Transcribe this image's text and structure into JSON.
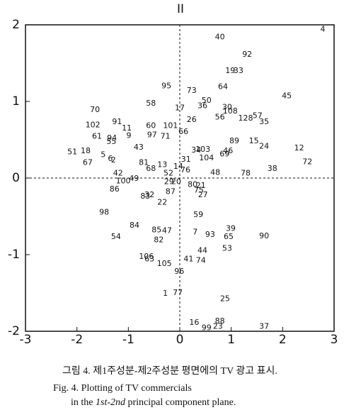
{
  "chart_data": {
    "type": "scatter",
    "title": "II",
    "xlim": [
      -3,
      3
    ],
    "ylim": [
      -2,
      2
    ],
    "xticks": [
      -3,
      -2,
      -1,
      0,
      1,
      2,
      3
    ],
    "yticks": [
      -2,
      -1,
      0,
      1,
      2
    ],
    "zero_lines": true,
    "color": "#111111",
    "points": [
      {
        "label": "4",
        "x": 2.78,
        "y": 1.94
      },
      {
        "label": "40",
        "x": 0.78,
        "y": 1.84
      },
      {
        "label": "92",
        "x": 1.31,
        "y": 1.61
      },
      {
        "label": "19",
        "x": 0.98,
        "y": 1.4
      },
      {
        "label": "33",
        "x": 1.14,
        "y": 1.4
      },
      {
        "label": "95",
        "x": -0.26,
        "y": 1.2
      },
      {
        "label": "73",
        "x": 0.23,
        "y": 1.14
      },
      {
        "label": "64",
        "x": 0.84,
        "y": 1.19
      },
      {
        "label": "45",
        "x": 2.08,
        "y": 1.07
      },
      {
        "label": "58",
        "x": -0.56,
        "y": 0.97
      },
      {
        "label": "50",
        "x": 0.52,
        "y": 1.01
      },
      {
        "label": "36",
        "x": 0.44,
        "y": 0.94
      },
      {
        "label": "17",
        "x": 0.0,
        "y": 0.91
      },
      {
        "label": "30",
        "x": 0.92,
        "y": 0.92
      },
      {
        "label": "108",
        "x": 0.98,
        "y": 0.87
      },
      {
        "label": "70",
        "x": -1.65,
        "y": 0.89
      },
      {
        "label": "128",
        "x": 1.28,
        "y": 0.78
      },
      {
        "label": "57",
        "x": 1.51,
        "y": 0.81
      },
      {
        "label": "56",
        "x": 0.78,
        "y": 0.79
      },
      {
        "label": "26",
        "x": 0.23,
        "y": 0.76
      },
      {
        "label": "35",
        "x": 1.64,
        "y": 0.73
      },
      {
        "label": "102",
        "x": -1.69,
        "y": 0.69
      },
      {
        "label": "91",
        "x": -1.22,
        "y": 0.73
      },
      {
        "label": "11",
        "x": -1.03,
        "y": 0.65
      },
      {
        "label": "60",
        "x": -0.56,
        "y": 0.68
      },
      {
        "label": "101",
        "x": -0.18,
        "y": 0.68
      },
      {
        "label": "66",
        "x": 0.07,
        "y": 0.6
      },
      {
        "label": "61",
        "x": -1.61,
        "y": 0.54
      },
      {
        "label": "94",
        "x": -1.32,
        "y": 0.52
      },
      {
        "label": "9",
        "x": -0.99,
        "y": 0.55
      },
      {
        "label": "97",
        "x": -0.54,
        "y": 0.56
      },
      {
        "label": "71",
        "x": -0.28,
        "y": 0.54
      },
      {
        "label": "89",
        "x": 1.06,
        "y": 0.48
      },
      {
        "label": "15",
        "x": 1.44,
        "y": 0.48
      },
      {
        "label": "55",
        "x": -1.33,
        "y": 0.47
      },
      {
        "label": "24",
        "x": 1.64,
        "y": 0.41
      },
      {
        "label": "43",
        "x": -0.8,
        "y": 0.4
      },
      {
        "label": "103",
        "x": 0.45,
        "y": 0.37
      },
      {
        "label": "34",
        "x": 0.32,
        "y": 0.36
      },
      {
        "label": "46",
        "x": 0.94,
        "y": 0.35
      },
      {
        "label": "69",
        "x": 0.87,
        "y": 0.31
      },
      {
        "label": "12",
        "x": 2.32,
        "y": 0.39
      },
      {
        "label": "51",
        "x": -2.09,
        "y": 0.34
      },
      {
        "label": "18",
        "x": -1.83,
        "y": 0.35
      },
      {
        "label": "5",
        "x": -1.49,
        "y": 0.3
      },
      {
        "label": "6",
        "x": -1.35,
        "y": 0.25
      },
      {
        "label": "2",
        "x": -1.29,
        "y": 0.23
      },
      {
        "label": "104",
        "x": 0.52,
        "y": 0.26
      },
      {
        "label": "31",
        "x": 0.12,
        "y": 0.24
      },
      {
        "label": "67",
        "x": -1.79,
        "y": 0.2
      },
      {
        "label": "81",
        "x": -0.7,
        "y": 0.2
      },
      {
        "label": "72",
        "x": 2.48,
        "y": 0.21
      },
      {
        "label": "13",
        "x": -0.34,
        "y": 0.17
      },
      {
        "label": "14",
        "x": -0.03,
        "y": 0.15
      },
      {
        "label": "76",
        "x": 0.11,
        "y": 0.1
      },
      {
        "label": "68",
        "x": -0.56,
        "y": 0.12
      },
      {
        "label": "48",
        "x": 0.69,
        "y": 0.07
      },
      {
        "label": "78",
        "x": 1.28,
        "y": 0.06
      },
      {
        "label": "38",
        "x": 1.8,
        "y": 0.12
      },
      {
        "label": "42",
        "x": -1.2,
        "y": 0.06
      },
      {
        "label": "52",
        "x": -0.22,
        "y": 0.06
      },
      {
        "label": "49",
        "x": -0.89,
        "y": -0.01
      },
      {
        "label": "100",
        "x": -1.1,
        "y": -0.04
      },
      {
        "label": "29",
        "x": -0.21,
        "y": -0.05
      },
      {
        "label": "20",
        "x": -0.07,
        "y": -0.05
      },
      {
        "label": "80",
        "x": 0.25,
        "y": -0.09
      },
      {
        "label": "21",
        "x": 0.41,
        "y": -0.1
      },
      {
        "label": "86",
        "x": -1.27,
        "y": -0.15
      },
      {
        "label": "75",
        "x": 0.37,
        "y": -0.16
      },
      {
        "label": "87",
        "x": -0.18,
        "y": -0.18
      },
      {
        "label": "27",
        "x": 0.45,
        "y": -0.22
      },
      {
        "label": "83",
        "x": -0.67,
        "y": -0.24
      },
      {
        "label": "32",
        "x": -0.59,
        "y": -0.22
      },
      {
        "label": "22",
        "x": -0.34,
        "y": -0.32
      },
      {
        "label": "98",
        "x": -1.47,
        "y": -0.45
      },
      {
        "label": "59",
        "x": 0.36,
        "y": -0.48
      },
      {
        "label": "84",
        "x": -0.88,
        "y": -0.62
      },
      {
        "label": "39",
        "x": 0.99,
        "y": -0.66
      },
      {
        "label": "85",
        "x": -0.45,
        "y": -0.68
      },
      {
        "label": "47",
        "x": -0.25,
        "y": -0.69
      },
      {
        "label": "7",
        "x": 0.3,
        "y": -0.71
      },
      {
        "label": "93",
        "x": 0.59,
        "y": -0.74
      },
      {
        "label": "65",
        "x": 0.95,
        "y": -0.77
      },
      {
        "label": "90",
        "x": 1.64,
        "y": -0.76
      },
      {
        "label": "54",
        "x": -1.24,
        "y": -0.77
      },
      {
        "label": "82",
        "x": -0.41,
        "y": -0.81
      },
      {
        "label": "53",
        "x": 0.92,
        "y": -0.92
      },
      {
        "label": "44",
        "x": 0.44,
        "y": -0.95
      },
      {
        "label": "106",
        "x": -0.65,
        "y": -1.03
      },
      {
        "label": "63",
        "x": -0.59,
        "y": -1.06
      },
      {
        "label": "41",
        "x": 0.17,
        "y": -1.06
      },
      {
        "label": "74",
        "x": 0.41,
        "y": -1.08
      },
      {
        "label": "105",
        "x": -0.3,
        "y": -1.12
      },
      {
        "label": "96",
        "x": -0.01,
        "y": -1.22
      },
      {
        "label": "1",
        "x": -0.28,
        "y": -1.51
      },
      {
        "label": "77",
        "x": -0.04,
        "y": -1.5
      },
      {
        "label": "25",
        "x": 0.88,
        "y": -1.58
      },
      {
        "label": "16",
        "x": 0.28,
        "y": -1.89
      },
      {
        "label": "88",
        "x": 0.78,
        "y": -1.87
      },
      {
        "label": "99",
        "x": 0.52,
        "y": -1.96
      },
      {
        "label": "23",
        "x": 0.74,
        "y": -1.94
      },
      {
        "label": "37",
        "x": 1.64,
        "y": -1.94
      }
    ]
  },
  "caption": {
    "korean": "그림 4. 제1주성분-제2주성분 평면에의 TV 광고 표시.",
    "english_line1": "Fig. 4. Plotting of TV commercials",
    "english_line2": [
      "in the ",
      "1st-2nd",
      " principal component plane."
    ]
  }
}
